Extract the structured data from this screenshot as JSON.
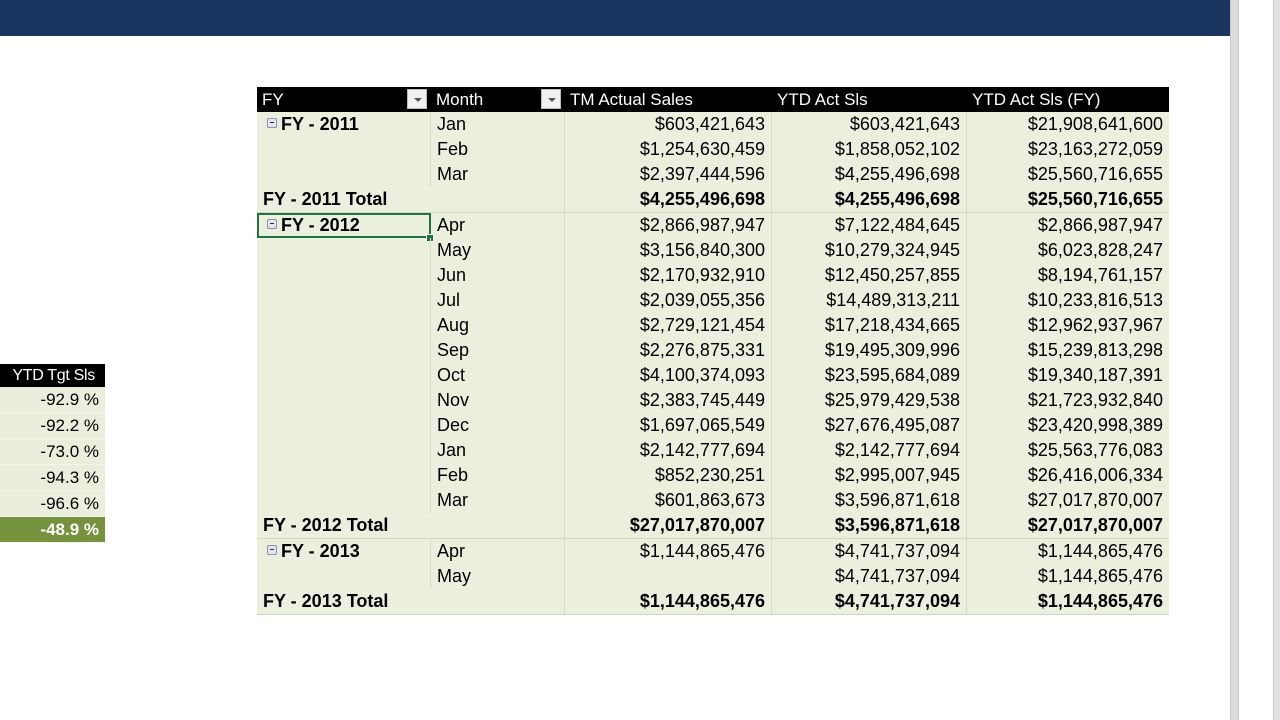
{
  "side_table": {
    "header": "YTD Tgt Sls",
    "values": [
      "-92.9 %",
      "-92.2 %",
      "-73.0 %",
      "-94.3 %",
      "-96.6 %"
    ],
    "highlight_value": "-48.9 %",
    "highlight_color": "#76923c"
  },
  "pivot": {
    "headers": {
      "fy": "FY",
      "month": "Month",
      "tm_actual_sales": "TM Actual Sales",
      "ytd_act_sls": "YTD Act Sls",
      "ytd_act_sls_fy": "YTD Act Sls (FY)"
    },
    "groups": [
      {
        "label": "FY - 2011",
        "rows": [
          {
            "month": "Jan",
            "tm": "$603,421,643",
            "ytd": "$603,421,643",
            "ytd_fy": "$21,908,641,600"
          },
          {
            "month": "Feb",
            "tm": "$1,254,630,459",
            "ytd": "$1,858,052,102",
            "ytd_fy": "$23,163,272,059"
          },
          {
            "month": "Mar",
            "tm": "$2,397,444,596",
            "ytd": "$4,255,496,698",
            "ytd_fy": "$25,560,716,655"
          }
        ],
        "total": {
          "label": "FY - 2011 Total",
          "tm": "$4,255,496,698",
          "ytd": "$4,255,496,698",
          "ytd_fy": "$25,560,716,655"
        }
      },
      {
        "label": "FY - 2012",
        "selected": true,
        "rows": [
          {
            "month": "Apr",
            "tm": "$2,866,987,947",
            "ytd": "$7,122,484,645",
            "ytd_fy": "$2,866,987,947"
          },
          {
            "month": "May",
            "tm": "$3,156,840,300",
            "ytd": "$10,279,324,945",
            "ytd_fy": "$6,023,828,247"
          },
          {
            "month": "Jun",
            "tm": "$2,170,932,910",
            "ytd": "$12,450,257,855",
            "ytd_fy": "$8,194,761,157"
          },
          {
            "month": "Jul",
            "tm": "$2,039,055,356",
            "ytd": "$14,489,313,211",
            "ytd_fy": "$10,233,816,513"
          },
          {
            "month": "Aug",
            "tm": "$2,729,121,454",
            "ytd": "$17,218,434,665",
            "ytd_fy": "$12,962,937,967"
          },
          {
            "month": "Sep",
            "tm": "$2,276,875,331",
            "ytd": "$19,495,309,996",
            "ytd_fy": "$15,239,813,298"
          },
          {
            "month": "Oct",
            "tm": "$4,100,374,093",
            "ytd": "$23,595,684,089",
            "ytd_fy": "$19,340,187,391"
          },
          {
            "month": "Nov",
            "tm": "$2,383,745,449",
            "ytd": "$25,979,429,538",
            "ytd_fy": "$21,723,932,840"
          },
          {
            "month": "Dec",
            "tm": "$1,697,065,549",
            "ytd": "$27,676,495,087",
            "ytd_fy": "$23,420,998,389"
          },
          {
            "month": "Jan",
            "tm": "$2,142,777,694",
            "ytd": "$2,142,777,694",
            "ytd_fy": "$25,563,776,083"
          },
          {
            "month": "Feb",
            "tm": "$852,230,251",
            "ytd": "$2,995,007,945",
            "ytd_fy": "$26,416,006,334"
          },
          {
            "month": "Mar",
            "tm": "$601,863,673",
            "ytd": "$3,596,871,618",
            "ytd_fy": "$27,017,870,007"
          }
        ],
        "total": {
          "label": "FY - 2012 Total",
          "tm": "$27,017,870,007",
          "ytd": "$3,596,871,618",
          "ytd_fy": "$27,017,870,007"
        }
      },
      {
        "label": "FY - 2013",
        "rows": [
          {
            "month": "Apr",
            "tm": "$1,144,865,476",
            "ytd": "$4,741,737,094",
            "ytd_fy": "$1,144,865,476"
          },
          {
            "month": "May",
            "tm": "",
            "ytd": "$4,741,737,094",
            "ytd_fy": "$1,144,865,476"
          }
        ],
        "total": {
          "label": "FY - 2013 Total",
          "tm": "$1,144,865,476",
          "ytd": "$4,741,737,094",
          "ytd_fy": "$1,144,865,476"
        }
      }
    ]
  },
  "colors": {
    "banner": "#1a3660",
    "pivot_body": "#ebf0de",
    "header_bg": "#000000",
    "selection": "#217346"
  }
}
